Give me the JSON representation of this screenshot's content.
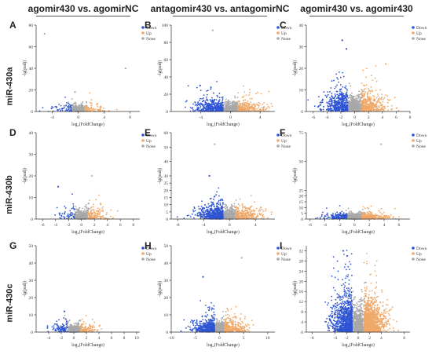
{
  "column_headers": [
    "agomir430 vs. agomirNC",
    "antagomir430 vs. antagomirNC",
    "agomir430 vs. agomir430"
  ],
  "row_headers": [
    "miR-430a",
    "miR-430b",
    "miR-430c"
  ],
  "colors": {
    "Down": "#2f55d4",
    "Up": "#f0a868",
    "None": "#a8a8a8"
  },
  "chart_data": [
    {
      "type": "scatter",
      "letter": "A",
      "xlabel": "log₂(FoldChange)",
      "ylabel": "-lg(padj)",
      "xlim": [
        -6.5,
        9.5
      ],
      "ylim": [
        0,
        80
      ],
      "xticks": [
        -4,
        0,
        4,
        8
      ],
      "yticks": [
        0,
        20,
        40,
        60,
        80
      ],
      "legend": [
        "Down",
        "Up",
        "None"
      ],
      "legend_position": "top-right",
      "spread": {
        "down": 60,
        "up": 90,
        "none": 420,
        "xs": 1.6,
        "ys": 4,
        "seed": 11
      },
      "outliers": [
        {
          "x": -5.2,
          "y": 72,
          "g": "None"
        },
        {
          "x": 7.3,
          "y": 40,
          "g": "None"
        },
        {
          "x": -0.5,
          "y": 18,
          "g": "None"
        }
      ]
    },
    {
      "type": "scatter",
      "letter": "B",
      "xlabel": "log₂(FoldChange)",
      "ylabel": "-lg(padj)",
      "xlim": [
        -8,
        6
      ],
      "ylim": [
        0,
        100
      ],
      "xticks": [
        -4,
        0,
        4
      ],
      "yticks": [
        0,
        20,
        40,
        60,
        80,
        100
      ],
      "legend": [
        "Down",
        "Up",
        "None"
      ],
      "legend_position": "top-right",
      "spread": {
        "down": 420,
        "up": 260,
        "none": 520,
        "xs": 1.8,
        "ys": 7,
        "seed": 23
      },
      "outliers": [
        {
          "x": -2.4,
          "y": 94,
          "g": "None"
        },
        {
          "x": -4.1,
          "y": 30,
          "g": "Down"
        }
      ]
    },
    {
      "type": "scatter",
      "letter": "C",
      "xlabel": "log₂(FoldChange)",
      "ylabel": "-lg(padj)",
      "xlim": [
        -7,
        8
      ],
      "ylim": [
        0,
        40
      ],
      "xticks": [
        -6,
        -4,
        -2,
        0,
        2,
        4,
        6,
        8
      ],
      "yticks": [
        0,
        10,
        20,
        30,
        40
      ],
      "legend": [
        "Down",
        "Up",
        "None"
      ],
      "legend_position": "top-right",
      "spread": {
        "down": 460,
        "up": 380,
        "none": 520,
        "xs": 1.7,
        "ys": 5,
        "seed": 37
      },
      "outliers": [
        {
          "x": -1.8,
          "y": 33,
          "g": "Down"
        },
        {
          "x": -1.2,
          "y": 29,
          "g": "Down"
        },
        {
          "x": 4.5,
          "y": 22,
          "g": "Up"
        }
      ]
    },
    {
      "type": "scatter",
      "letter": "D",
      "xlabel": "log₂(FoldChange)",
      "ylabel": "-lg(padj)",
      "xlim": [
        -7,
        9
      ],
      "ylim": [
        0,
        40
      ],
      "xticks": [
        -6,
        -4,
        -2,
        0,
        2,
        4,
        6,
        8
      ],
      "yticks": [
        0,
        10,
        20,
        30,
        40
      ],
      "legend": [
        "Down",
        "Up",
        "None"
      ],
      "legend_position": "top-right",
      "spread": {
        "down": 50,
        "up": 150,
        "none": 440,
        "xs": 1.5,
        "ys": 3,
        "seed": 41
      },
      "outliers": [
        {
          "x": -3.6,
          "y": 15,
          "g": "Down"
        },
        {
          "x": 1.6,
          "y": 20,
          "g": "Up"
        }
      ]
    },
    {
      "type": "scatter",
      "letter": "E",
      "xlabel": "log₂(FoldChange)",
      "ylabel": "-lg(padj)",
      "xlim": [
        -9,
        7
      ],
      "ylim": [
        0,
        60
      ],
      "xticks": [
        -8,
        -4,
        0,
        4
      ],
      "yticks": [
        0,
        5,
        10,
        15,
        20,
        25,
        30,
        40,
        50,
        60
      ],
      "legend": [
        "Down",
        "Up",
        "None"
      ],
      "legend_position": "top-right",
      "spread": {
        "down": 520,
        "up": 260,
        "none": 540,
        "xs": 1.9,
        "ys": 5,
        "seed": 53
      },
      "outliers": [
        {
          "x": -2.3,
          "y": 52,
          "g": "None"
        },
        {
          "x": -3.1,
          "y": 30,
          "g": "Down"
        }
      ]
    },
    {
      "type": "scatter",
      "letter": "F",
      "xlabel": "log₂(FoldChange)",
      "ylabel": "-lg(padj)",
      "xlim": [
        -6.5,
        7.5
      ],
      "ylim": [
        0,
        75
      ],
      "xticks": [
        -6,
        -4,
        -2,
        0,
        2,
        4,
        6
      ],
      "yticks": [
        0,
        5,
        10,
        15,
        20,
        25,
        50,
        75
      ],
      "legend": [
        "Down",
        "Up",
        "None"
      ],
      "legend_position": "top-right",
      "spread": {
        "down": 150,
        "up": 260,
        "none": 520,
        "xs": 1.6,
        "ys": 3,
        "seed": 67
      },
      "outliers": [
        {
          "x": 3.6,
          "y": 65,
          "g": "None"
        }
      ]
    },
    {
      "type": "scatter",
      "letter": "G",
      "xlabel": "log₂(FoldChange)",
      "ylabel": "-lg(padj)",
      "xlim": [
        -6,
        10.5
      ],
      "ylim": [
        0,
        50
      ],
      "xticks": [
        -4,
        -2,
        0,
        2,
        4,
        6,
        8,
        10
      ],
      "yticks": [
        0,
        10,
        20,
        30,
        40,
        50
      ],
      "legend": [
        "Down",
        "Up",
        "None"
      ],
      "legend_position": "top-right",
      "spread": {
        "down": 90,
        "up": 110,
        "none": 430,
        "xs": 1.5,
        "ys": 3,
        "seed": 71
      },
      "outliers": [
        {
          "x": -1.5,
          "y": 12,
          "g": "Down"
        }
      ]
    },
    {
      "type": "scatter",
      "letter": "H",
      "xlabel": "log₂(FoldChange)",
      "ylabel": "-lg(padj)",
      "xlim": [
        -10,
        11.5
      ],
      "ylim": [
        0,
        50
      ],
      "xticks": [
        -10,
        -5,
        0,
        5,
        10
      ],
      "yticks": [
        0,
        10,
        20,
        30,
        40,
        50
      ],
      "legend": [
        "Down",
        "Up",
        "None"
      ],
      "legend_position": "top-right",
      "spread": {
        "down": 420,
        "up": 320,
        "none": 560,
        "xs": 2.1,
        "ys": 4,
        "seed": 83
      },
      "outliers": [
        {
          "x": -3.4,
          "y": 32,
          "g": "Down"
        },
        {
          "x": 4.6,
          "y": 43,
          "g": "None"
        }
      ]
    },
    {
      "type": "scatter",
      "letter": "I",
      "xlabel": "log₂(FoldChange)",
      "ylabel": "-lg(padj)",
      "xlim": [
        -9,
        9
      ],
      "ylim": [
        0,
        34
      ],
      "xticks": [
        -8,
        -4,
        -2,
        0,
        2,
        4,
        8
      ],
      "yticks": [
        0,
        4,
        8,
        12,
        16,
        20,
        24,
        28,
        32
      ],
      "legend": [
        "Down",
        "Up",
        "None"
      ],
      "legend_position": "top-right",
      "spread": {
        "down": 900,
        "up": 1100,
        "none": 700,
        "xs": 1.7,
        "ys": 7,
        "seed": 97
      },
      "outliers": [
        {
          "x": -2.6,
          "y": 32,
          "g": "Down"
        },
        {
          "x": -1.9,
          "y": 30,
          "g": "Down"
        }
      ]
    }
  ]
}
